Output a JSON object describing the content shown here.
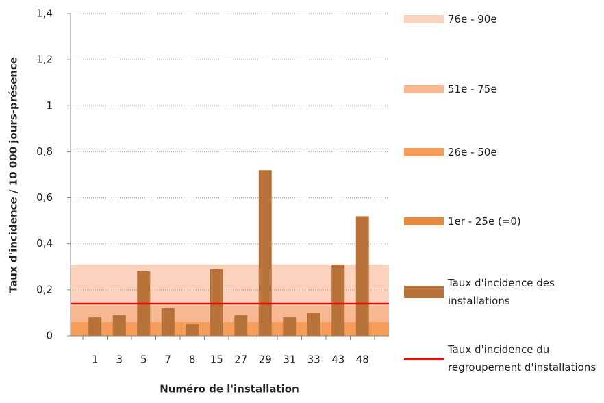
{
  "chart_data": {
    "type": "bar",
    "y_label": "Taux d'incidence  / 10 000 jours-présence",
    "x_label": "Numéro de l'installation",
    "categories": [
      "1",
      "3",
      "5",
      "7",
      "8",
      "15",
      "27",
      "29",
      "31",
      "33",
      "43",
      "48"
    ],
    "series": [
      {
        "name": "Taux d'incidence des installations",
        "color": "#b8733b",
        "values": [
          0.08,
          0.09,
          0.28,
          0.12,
          0.05,
          0.29,
          0.09,
          0.72,
          0.08,
          0.1,
          0.31,
          0.52
        ]
      }
    ],
    "bands": [
      {
        "name": "76e - 90e",
        "color": "#fbd3bd",
        "value": 0.18
      },
      {
        "name": "51e - 75e",
        "color": "#f8b893",
        "value": 0.07
      },
      {
        "name": "26e - 50e",
        "color": "#f59d58",
        "value": 0.06
      },
      {
        "name": "1er - 25e (=0)",
        "color": "#e88a3c",
        "value": 0
      }
    ],
    "reference_line": {
      "name": "Taux d'incidence du regroupement d'installations",
      "color": "#ff0000",
      "value": 0.14
    },
    "ylim": [
      0,
      1.4
    ],
    "yticks": [
      0,
      {
        "value": 0.2,
        "label": "0,2"
      },
      {
        "value": 0.4,
        "label": "0,4"
      },
      {
        "value": 0.6,
        "label": "0,6"
      },
      {
        "value": 0.8,
        "label": "0,8"
      },
      1,
      {
        "value": 1.2,
        "label": "1,2"
      },
      {
        "value": 1.4,
        "label": "1,4"
      }
    ],
    "grid": true
  }
}
